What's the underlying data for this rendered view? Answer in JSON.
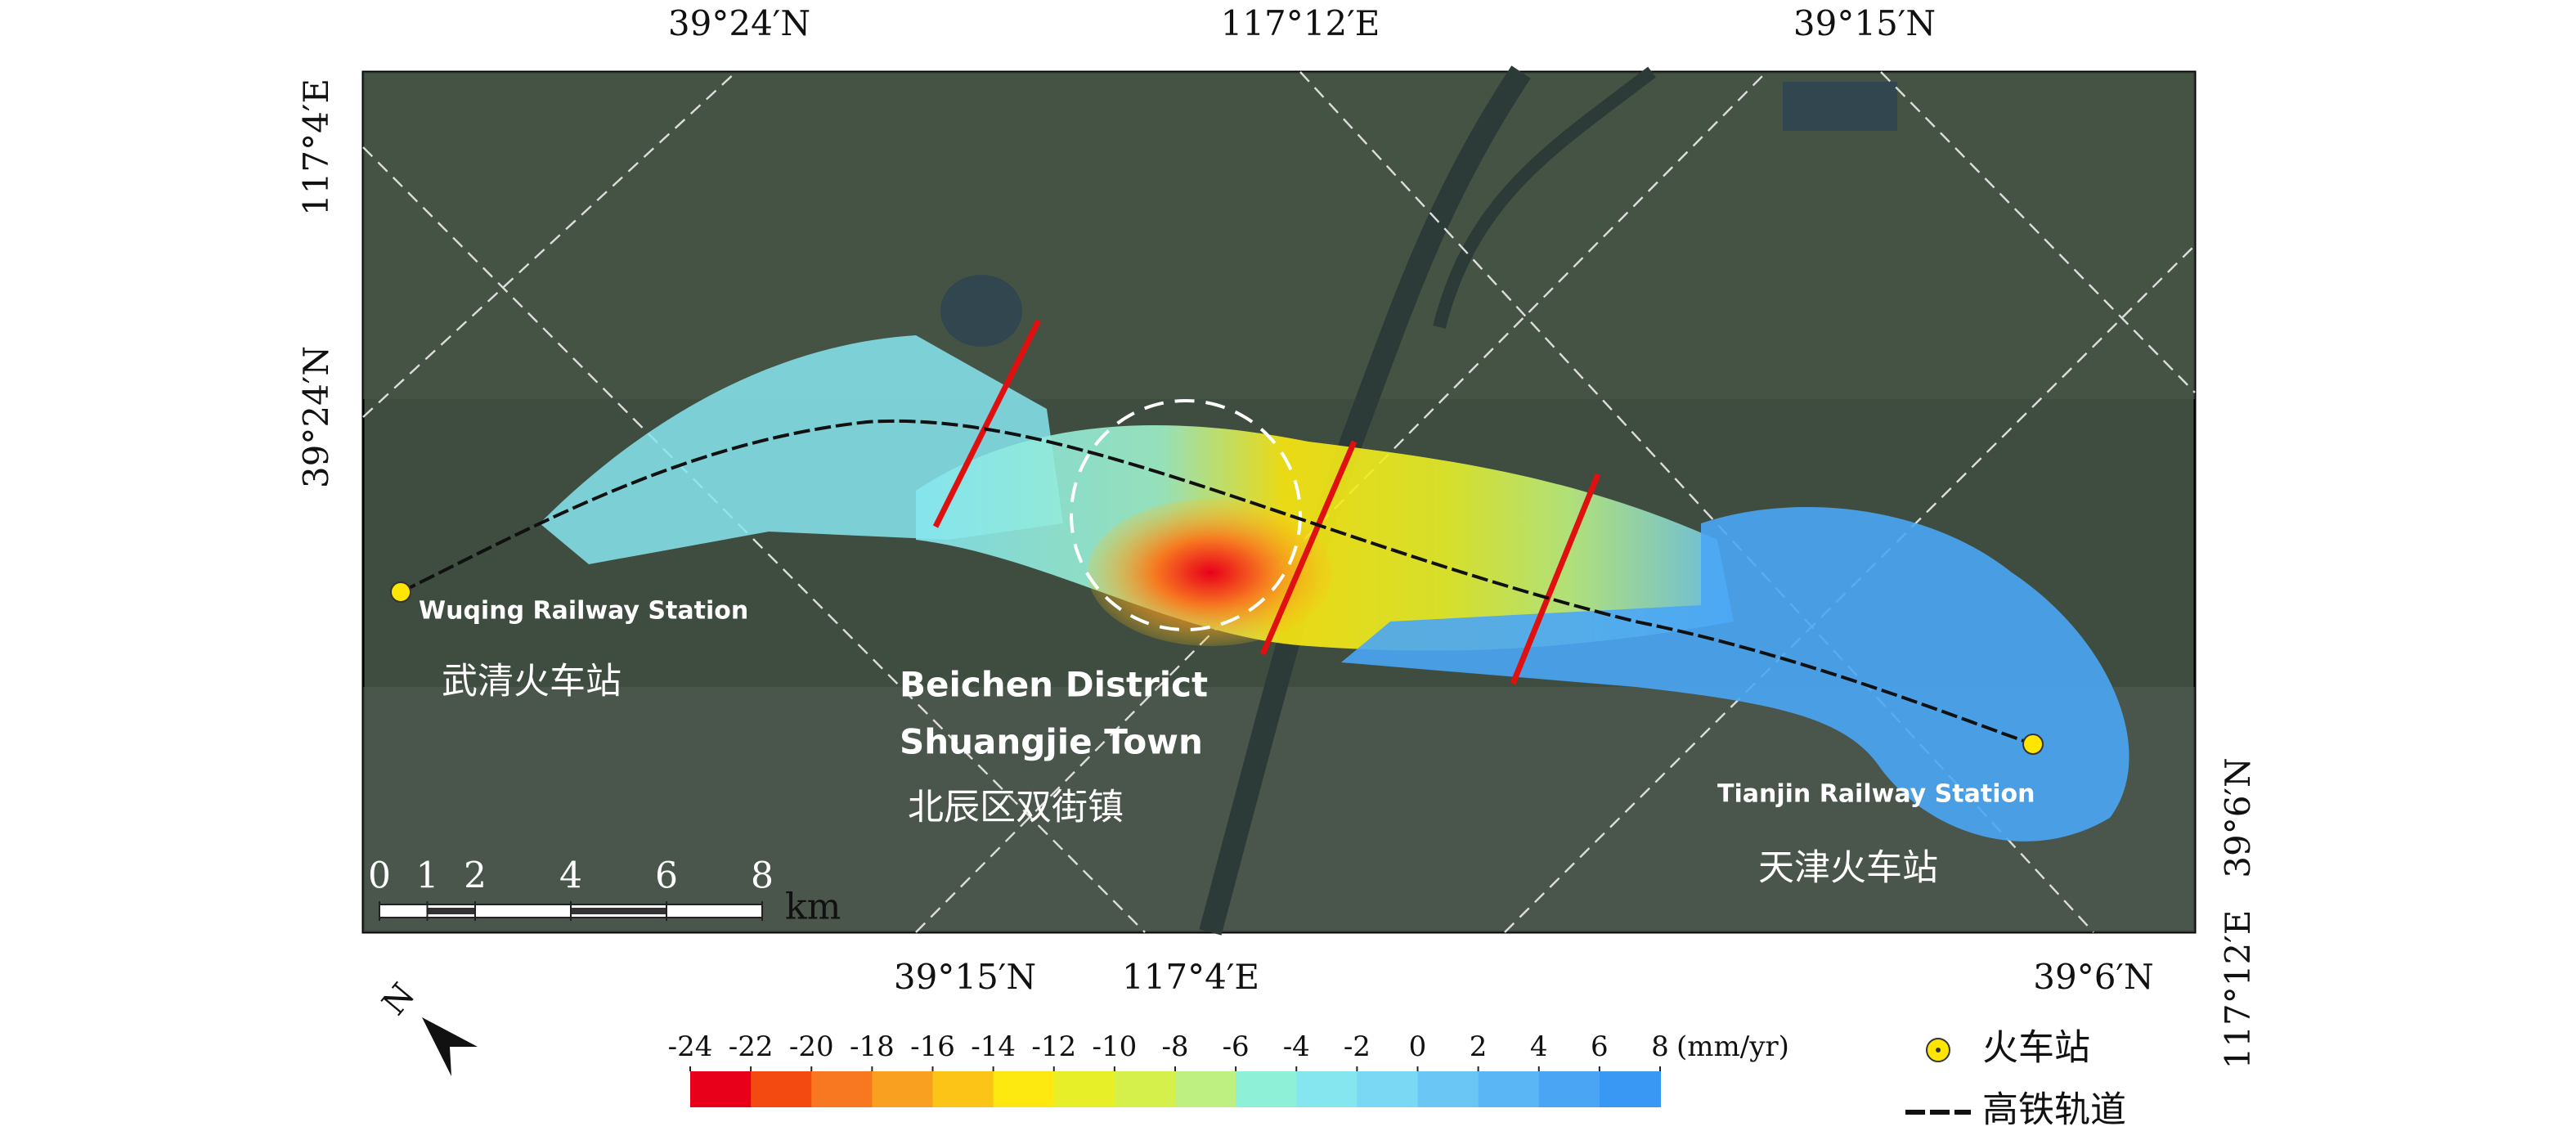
{
  "coordinate_labels": {
    "top": [
      "39°24′N",
      "117°12′E",
      "39°15′N"
    ],
    "left": [
      "117°4′E",
      "39°24′N"
    ],
    "bottom": [
      "39°15′N",
      "117°4′E",
      "39°6′N"
    ],
    "right": [
      "39°6′N",
      "117°12′E"
    ]
  },
  "place_labels": [
    "Wuqing Railway Station",
    "武清火车站",
    "Beichen District",
    "Shuangjie Town",
    "北辰区双街镇",
    "Tianjin Railway Station",
    "天津火车站"
  ],
  "scale_bar": {
    "ticks": [
      0,
      1,
      2,
      4,
      6,
      8
    ],
    "unit": "km"
  },
  "north_arrow": "N",
  "colorbar": {
    "ticks": [
      -24,
      -22,
      -20,
      -18,
      -16,
      -14,
      -12,
      -10,
      -8,
      -6,
      -4,
      -2,
      0,
      2,
      4,
      6,
      8
    ],
    "colors": [
      "#e8001a",
      "#f24a10",
      "#f77820",
      "#f9a020",
      "#fbc416",
      "#fde910",
      "#e7ef28",
      "#d5f04a",
      "#bdf080",
      "#8ff0d8",
      "#86e6f0",
      "#7ad8f5",
      "#6ac6f5",
      "#5ab6f5",
      "#4aa6f5",
      "#3a98f5"
    ],
    "unit": "(mm/yr)"
  },
  "legend": [
    "火车站",
    "高铁轨道"
  ]
}
